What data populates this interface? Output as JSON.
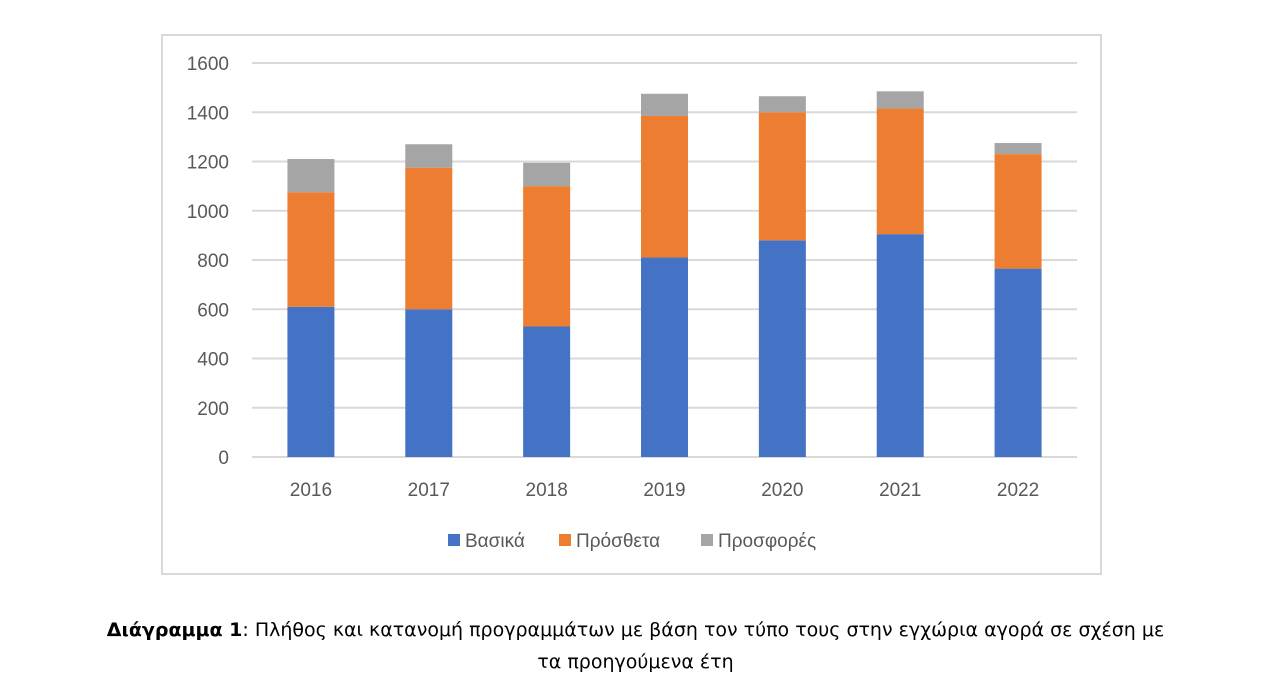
{
  "chart_data": {
    "type": "bar",
    "stacked": true,
    "categories": [
      "2016",
      "2017",
      "2018",
      "2019",
      "2020",
      "2021",
      "2022"
    ],
    "series": [
      {
        "name": "Βασικά",
        "color": "#4472c4",
        "values": [
          610,
          600,
          530,
          810,
          880,
          905,
          765
        ]
      },
      {
        "name": "Πρόσθετα",
        "color": "#ed7d31",
        "values": [
          465,
          575,
          570,
          575,
          520,
          510,
          465
        ]
      },
      {
        "name": "Προσφορές",
        "color": "#a5a5a5",
        "values": [
          135,
          95,
          95,
          90,
          65,
          70,
          45
        ]
      }
    ],
    "ylim": [
      0,
      1600
    ],
    "yticks": [
      0,
      200,
      400,
      600,
      800,
      1000,
      1200,
      1400,
      1600
    ],
    "grid": true,
    "legend_position": "bottom",
    "title": "",
    "xlabel": "",
    "ylabel": ""
  },
  "caption": {
    "label": "Διάγραμμα 1",
    "separator": ":",
    "line1": " Πλήθος και κατανομή προγραμμάτων με βάση τον τύπο τους στην εγχώρια αγορά σε σχέση με",
    "line2": "τα προηγούμενα έτη"
  }
}
